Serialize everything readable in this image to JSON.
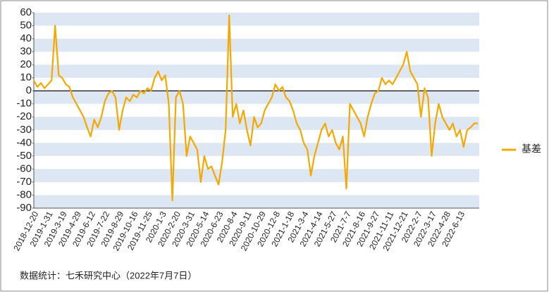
{
  "chart_data": {
    "type": "line",
    "source": "数据统计：七禾研究中心（2022年7月7日）",
    "categories": [
      "2018-12-20",
      null,
      null,
      null,
      "2019-1-31",
      null,
      null,
      null,
      "2019-3-19",
      null,
      null,
      null,
      "2019-4-29",
      null,
      null,
      null,
      "2019-6-12",
      null,
      null,
      null,
      "2019-7-22",
      null,
      null,
      null,
      "2019-8-29",
      null,
      null,
      null,
      "2019-10-16",
      null,
      null,
      null,
      "2019-11-25",
      null,
      null,
      null,
      "2020-1-3",
      null,
      null,
      null,
      "2020-2-20",
      null,
      null,
      null,
      "2020-3-31",
      null,
      null,
      null,
      "2020-5-14",
      null,
      null,
      null,
      "2020-6-23",
      null,
      null,
      null,
      "2020-8-4",
      null,
      null,
      null,
      "2020-9-11",
      null,
      null,
      null,
      "2020-10-29",
      null,
      null,
      null,
      "2020-12-8",
      null,
      null,
      null,
      "2021-1-18",
      null,
      null,
      null,
      "2021-3-4",
      null,
      null,
      null,
      "2021-4-14",
      null,
      null,
      null,
      "2021-5-27",
      null,
      null,
      null,
      "2021-7-7",
      null,
      null,
      null,
      "2021-8-16",
      null,
      null,
      null,
      "2021-9-27",
      null,
      null,
      null,
      "2021-11-11",
      null,
      null,
      null,
      "2021-12-21",
      null,
      null,
      null,
      "2022-2-7",
      null,
      null,
      null,
      "2022-3-17",
      null,
      null,
      null,
      "2022-4-28",
      null,
      null,
      null,
      "2022-6-13",
      null,
      null,
      null,
      null,
      null
    ],
    "series": [
      {
        "name": "基差",
        "color": "#f5a800",
        "values": [
          8,
          3,
          6,
          2,
          5,
          8,
          50,
          12,
          10,
          5,
          3,
          -5,
          -10,
          -15,
          -20,
          -28,
          -35,
          -22,
          -28,
          -20,
          -8,
          -2,
          0,
          -5,
          -30,
          -15,
          -5,
          -8,
          -3,
          -5,
          0,
          -2,
          2,
          0,
          10,
          15,
          8,
          12,
          -10,
          -84,
          -5,
          0,
          -10,
          -50,
          -35,
          -40,
          -45,
          -70,
          -50,
          -60,
          -58,
          -65,
          -72,
          -55,
          -30,
          58,
          -20,
          -10,
          -25,
          -15,
          -30,
          -42,
          -20,
          -28,
          -25,
          -15,
          -10,
          -5,
          5,
          0,
          3,
          -5,
          -8,
          -15,
          -25,
          -30,
          -40,
          -45,
          -65,
          -50,
          -40,
          -30,
          -25,
          -35,
          -30,
          -40,
          -45,
          -35,
          -75,
          -10,
          -15,
          -20,
          -25,
          -35,
          -20,
          -10,
          -2,
          0,
          10,
          5,
          8,
          5,
          10,
          15,
          20,
          30,
          15,
          10,
          5,
          -20,
          2,
          -5,
          -50,
          -25,
          -10,
          -20,
          -25,
          -30,
          -25,
          -35,
          -30,
          -43,
          -30,
          -28,
          -25,
          -25
        ]
      }
    ],
    "ylim": [
      -90,
      60
    ],
    "yticks": [
      -90,
      -80,
      -70,
      -60,
      -50,
      -40,
      -30,
      -20,
      -10,
      0,
      10,
      20,
      30,
      40,
      50,
      60
    ],
    "stripes": true,
    "legend": "right"
  }
}
